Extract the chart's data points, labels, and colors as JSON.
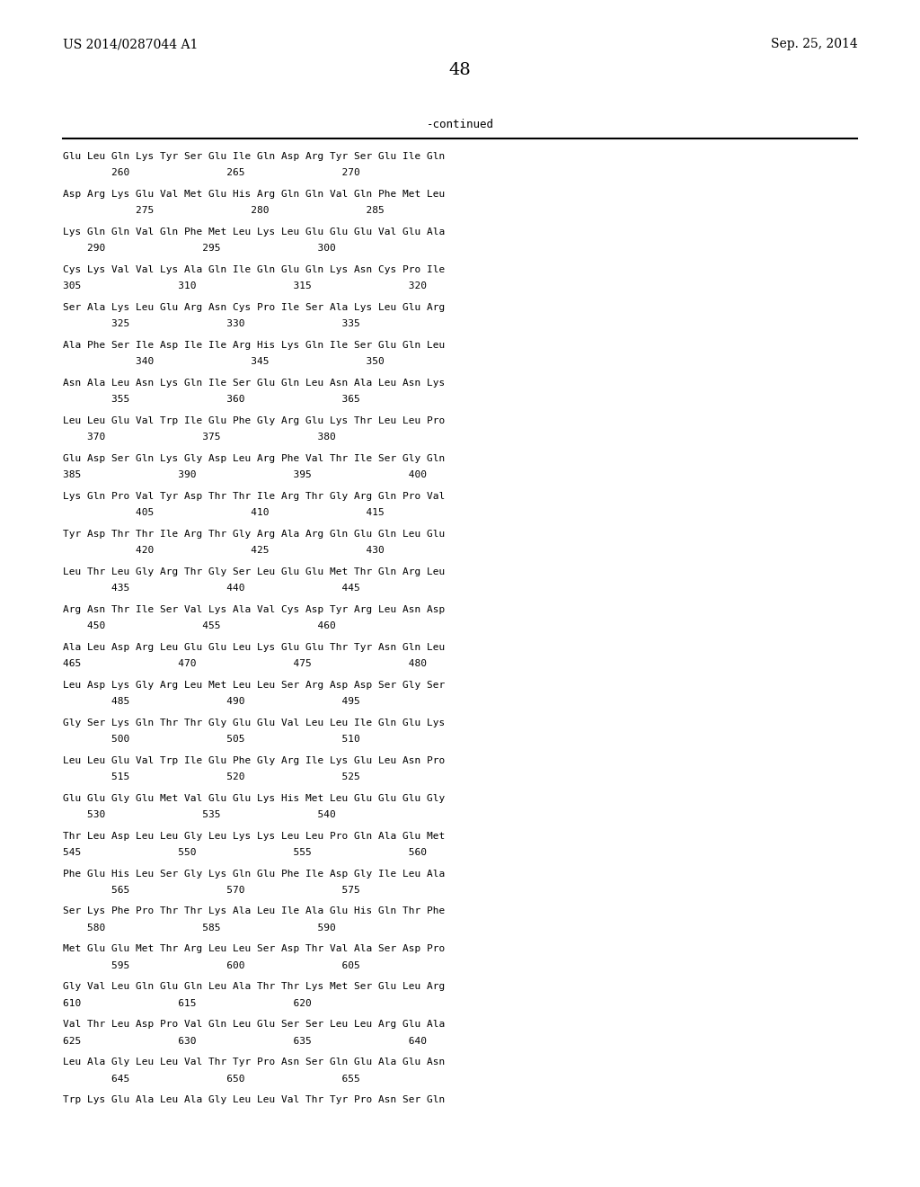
{
  "header_left": "US 2014/0287044 A1",
  "header_right": "Sep. 25, 2014",
  "page_number": "48",
  "continued_label": "-continued",
  "background_color": "#ffffff",
  "text_color": "#000000",
  "sequence_entries": [
    {
      "seq": "Glu Leu Gln Lys Tyr Ser Glu Ile Gln Asp Arg Tyr Ser Glu Ile Gln",
      "num": "        260                265                270"
    },
    {
      "seq": "Asp Arg Lys Glu Val Met Glu His Arg Gln Gln Val Gln Phe Met Leu",
      "num": "            275                280                285"
    },
    {
      "seq": "Lys Gln Gln Val Gln Phe Met Leu Lys Leu Glu Glu Glu Val Glu Ala",
      "num": "    290                295                300"
    },
    {
      "seq": "Cys Lys Val Val Lys Ala Gln Ile Gln Glu Gln Lys Asn Cys Pro Ile",
      "num": "305                310                315                320"
    },
    {
      "seq": "Ser Ala Lys Leu Glu Arg Asn Cys Pro Ile Ser Ala Lys Leu Glu Arg",
      "num": "        325                330                335"
    },
    {
      "seq": "Ala Phe Ser Ile Asp Ile Ile Arg His Lys Gln Ile Ser Glu Gln Leu",
      "num": "            340                345                350"
    },
    {
      "seq": "Asn Ala Leu Asn Lys Gln Ile Ser Glu Gln Leu Asn Ala Leu Asn Lys",
      "num": "        355                360                365"
    },
    {
      "seq": "Leu Leu Glu Val Trp Ile Glu Phe Gly Arg Glu Lys Thr Leu Leu Pro",
      "num": "    370                375                380"
    },
    {
      "seq": "Glu Asp Ser Gln Lys Gly Asp Leu Arg Phe Val Thr Ile Ser Gly Gln",
      "num": "385                390                395                400"
    },
    {
      "seq": "Lys Gln Pro Val Tyr Asp Thr Thr Ile Arg Thr Gly Arg Gln Pro Val",
      "num": "            405                410                415"
    },
    {
      "seq": "Tyr Asp Thr Thr Ile Arg Thr Gly Arg Ala Arg Gln Glu Gln Leu Glu",
      "num": "            420                425                430"
    },
    {
      "seq": "Leu Thr Leu Gly Arg Thr Gly Ser Leu Glu Glu Met Thr Gln Arg Leu",
      "num": "        435                440                445"
    },
    {
      "seq": "Arg Asn Thr Ile Ser Val Lys Ala Val Cys Asp Tyr Arg Leu Asn Asp",
      "num": "    450                455                460"
    },
    {
      "seq": "Ala Leu Asp Arg Leu Glu Glu Leu Lys Glu Glu Thr Tyr Asn Gln Leu",
      "num": "465                470                475                480"
    },
    {
      "seq": "Leu Asp Lys Gly Arg Leu Met Leu Leu Ser Arg Asp Asp Ser Gly Ser",
      "num": "        485                490                495"
    },
    {
      "seq": "Gly Ser Lys Gln Thr Thr Gly Glu Glu Val Leu Leu Ile Gln Glu Lys",
      "num": "        500                505                510"
    },
    {
      "seq": "Leu Leu Glu Val Trp Ile Glu Phe Gly Arg Ile Lys Glu Leu Asn Pro",
      "num": "        515                520                525"
    },
    {
      "seq": "Glu Glu Gly Glu Met Val Glu Glu Lys His Met Leu Glu Glu Glu Gly",
      "num": "    530                535                540"
    },
    {
      "seq": "Thr Leu Asp Leu Leu Gly Leu Lys Lys Leu Leu Pro Gln Ala Glu Met",
      "num": "545                550                555                560"
    },
    {
      "seq": "Phe Glu His Leu Ser Gly Lys Gln Glu Phe Ile Asp Gly Ile Leu Ala",
      "num": "        565                570                575"
    },
    {
      "seq": "Ser Lys Phe Pro Thr Thr Lys Ala Leu Ile Ala Glu His Gln Thr Phe",
      "num": "    580                585                590"
    },
    {
      "seq": "Met Glu Glu Met Thr Arg Leu Leu Ser Asp Thr Val Ala Ser Asp Pro",
      "num": "        595                600                605"
    },
    {
      "seq": "Gly Val Leu Gln Glu Gln Leu Ala Thr Thr Lys Met Ser Glu Leu Arg",
      "num": "610                615                620"
    },
    {
      "seq": "Val Thr Leu Asp Pro Val Gln Leu Glu Ser Ser Leu Leu Arg Glu Ala",
      "num": "625                630                635                640"
    },
    {
      "seq": "Leu Ala Gly Leu Leu Val Thr Tyr Pro Asn Ser Gln Glu Ala Glu Asn",
      "num": "        645                650                655"
    },
    {
      "seq": "Trp Lys Glu Ala Leu Ala Gly Leu Leu Val Thr Tyr Pro Asn Ser Gln",
      "num": ""
    }
  ]
}
